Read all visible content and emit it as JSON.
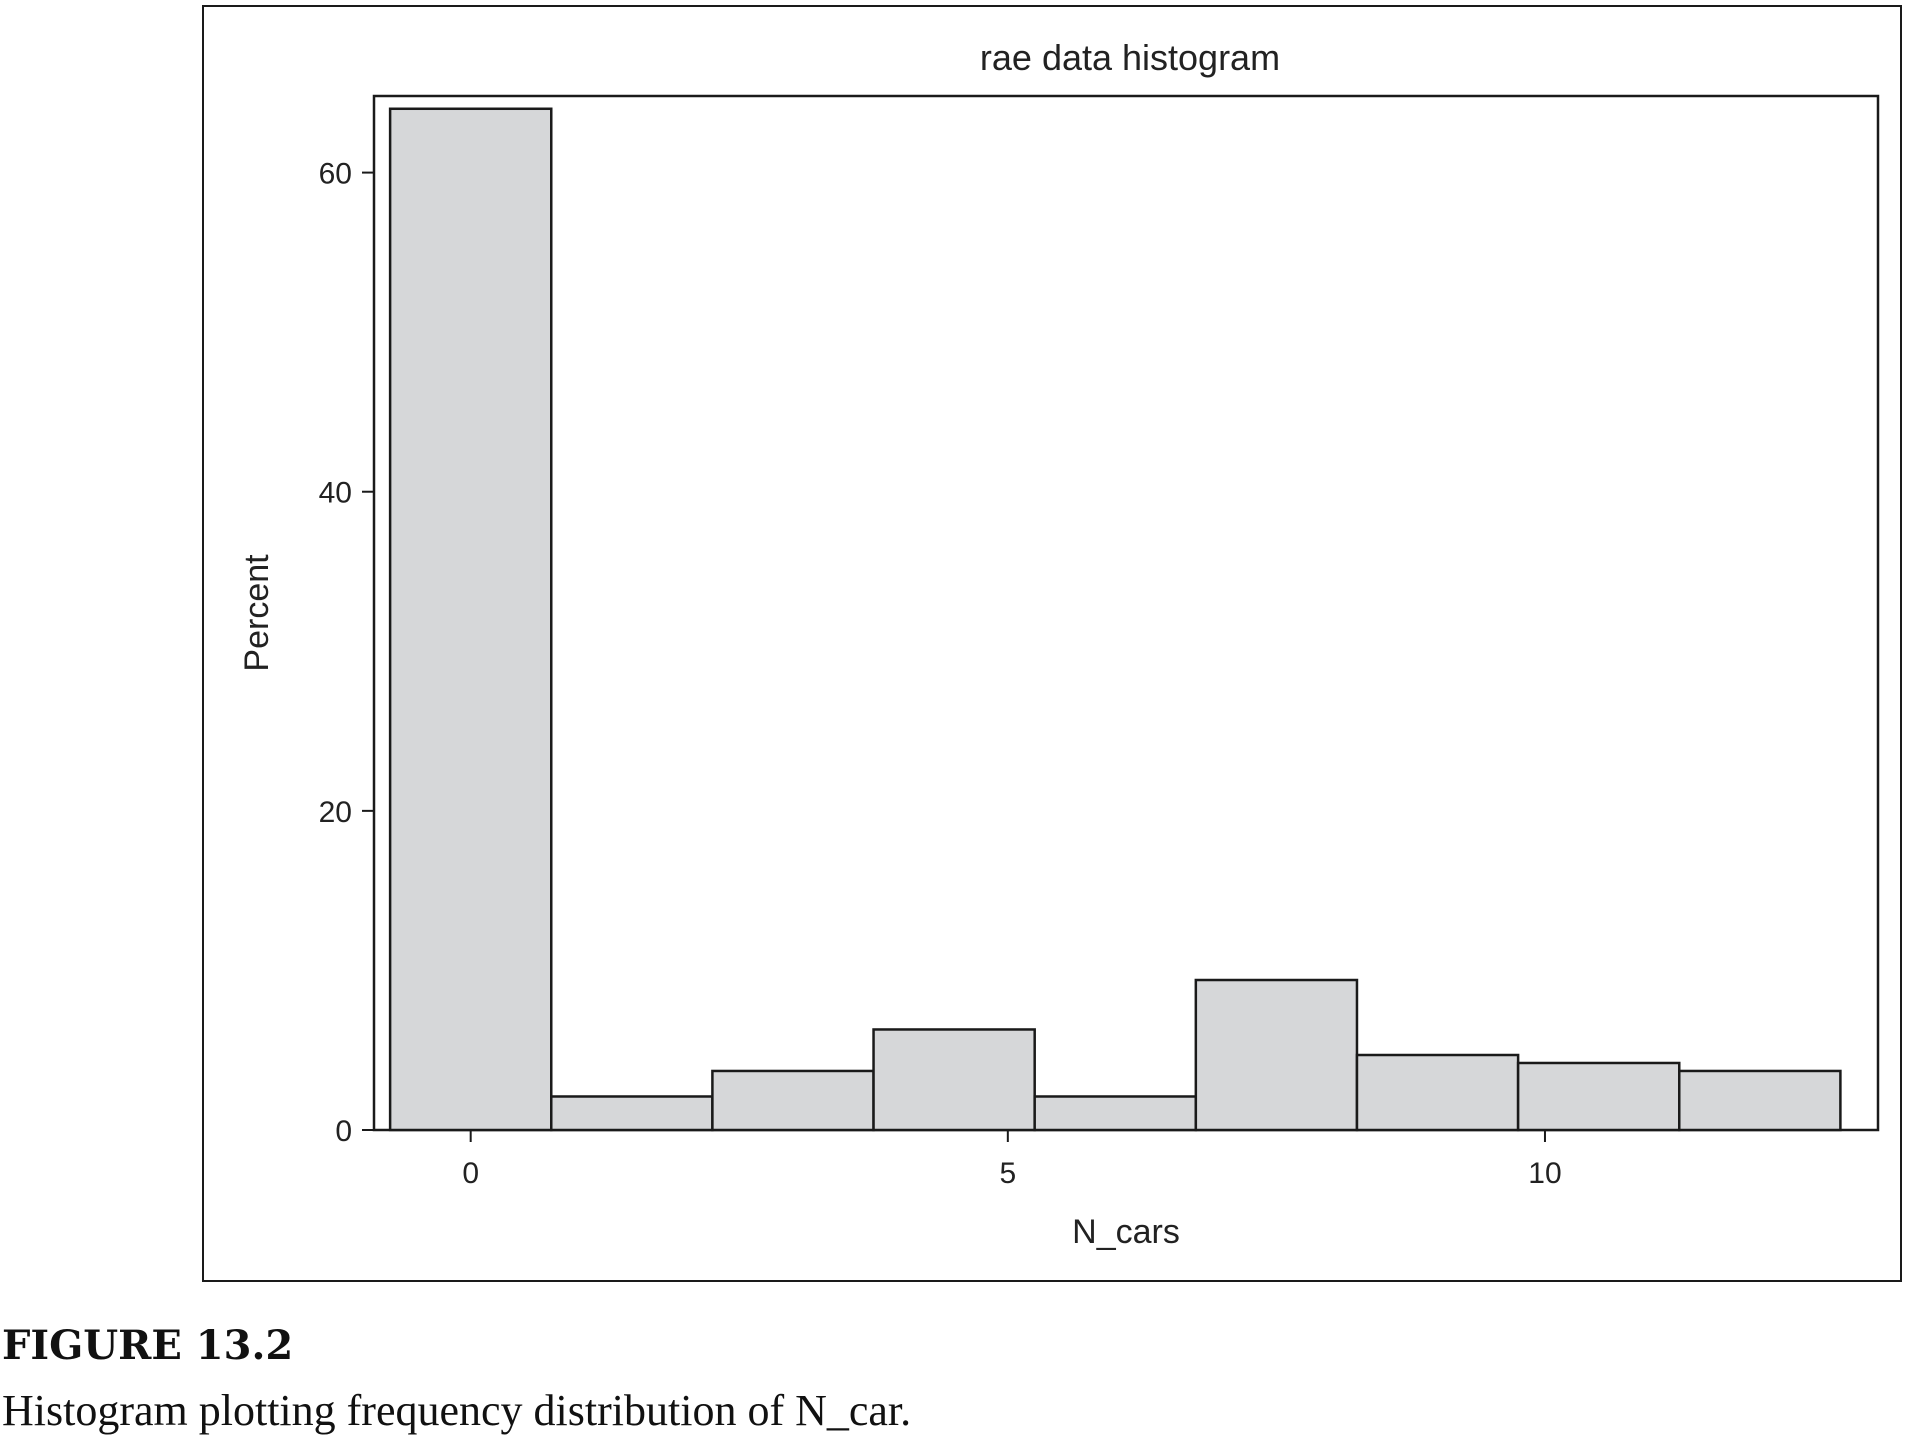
{
  "chart_data": {
    "type": "bar",
    "title": "rae data histogram",
    "xlabel": "N_cars",
    "ylabel": "Percent",
    "xlim": [
      -0.9,
      13.1
    ],
    "ylim": [
      0,
      64.8
    ],
    "x_ticks": [
      0,
      5,
      10
    ],
    "y_ticks": [
      0,
      20,
      40,
      60
    ],
    "bin_edges": [
      -0.75,
      0.75,
      2.25,
      3.75,
      5.25,
      6.75,
      8.25,
      9.75,
      11.25,
      12.75
    ],
    "values": [
      64,
      2.1,
      3.7,
      6.3,
      2.1,
      9.4,
      4.7,
      4.2,
      3.7
    ],
    "colors": {
      "bar_fill": "#d6d7d9",
      "bar_stroke": "#1a1a1a"
    },
    "grid": false
  },
  "caption": {
    "label": "FIGURE 13.2",
    "text": "Histogram plotting frequency distribution of N_car."
  }
}
